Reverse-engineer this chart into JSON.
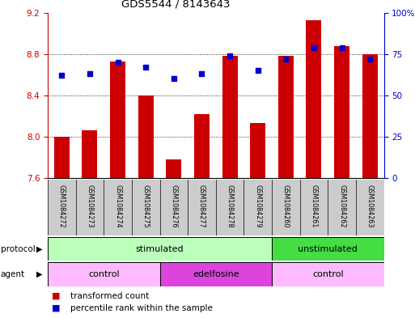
{
  "title": "GDS5544 / 8143643",
  "samples": [
    "GSM1084272",
    "GSM1084273",
    "GSM1084274",
    "GSM1084275",
    "GSM1084276",
    "GSM1084277",
    "GSM1084278",
    "GSM1084279",
    "GSM1084260",
    "GSM1084261",
    "GSM1084262",
    "GSM1084263"
  ],
  "bar_values": [
    8.0,
    8.06,
    8.73,
    8.4,
    7.78,
    8.22,
    8.78,
    8.13,
    8.78,
    9.13,
    8.88,
    8.8
  ],
  "dot_values": [
    62,
    63,
    70,
    67,
    60,
    63,
    74,
    65,
    72,
    79,
    79,
    72
  ],
  "ylim_left": [
    7.6,
    9.2
  ],
  "ylim_right": [
    0,
    100
  ],
  "yticks_left": [
    7.6,
    8.0,
    8.4,
    8.8,
    9.2
  ],
  "yticks_right": [
    0,
    25,
    50,
    75,
    100
  ],
  "ytick_labels_right": [
    "0",
    "25",
    "50",
    "75",
    "100%"
  ],
  "bar_color": "#cc0000",
  "dot_color": "#0000cc",
  "bar_bottom": 7.6,
  "protocol_labels": [
    "stimulated",
    "unstimulated"
  ],
  "protocol_color_stimulated": "#bbffbb",
  "protocol_color_unstimulated": "#44dd44",
  "agent_labels": [
    "control",
    "edelfosine",
    "control"
  ],
  "agent_color_control": "#ffbbff",
  "agent_color_edelfosine": "#dd44dd",
  "background_color": "#ffffff",
  "tick_label_color_left": "#cc0000",
  "tick_label_color_right": "#0000cc",
  "xtick_bg_color": "#cccccc"
}
